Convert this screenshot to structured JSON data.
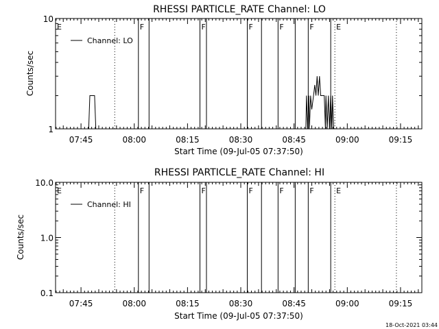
{
  "chart_data": [
    {
      "type": "line",
      "title": "RHESSI PARTICLE_RATE Channel: LO",
      "xlabel": "Start Time (09-Jul-05 07:37:50)",
      "ylabel": "Counts/sec",
      "yscale": "log",
      "ylim": [
        1,
        10
      ],
      "y_tick_labels": [
        "1",
        "10"
      ],
      "xlim": [
        "07:37:50",
        "09:21:00"
      ],
      "x_tick_labels": [
        "07:45",
        "08:00",
        "08:15",
        "08:30",
        "08:45",
        "09:00",
        "09:15"
      ],
      "legend": {
        "label": "Channel: LO",
        "placement": "top-left"
      },
      "grid": false,
      "series": [
        {
          "name": "Channel: LO",
          "color": "#000000",
          "points": [
            [
              "07:47:10",
              1
            ],
            [
              "07:47:30",
              2
            ],
            [
              "07:48:50",
              2
            ],
            [
              "07:49:10",
              1
            ],
            [
              "08:48:20",
              1
            ],
            [
              "08:48:30",
              2
            ],
            [
              "08:48:50",
              1
            ],
            [
              "08:49:10",
              2
            ],
            [
              "08:49:20",
              1
            ],
            [
              "08:49:40",
              2
            ],
            [
              "08:50:00",
              1.5
            ],
            [
              "08:50:30",
              2
            ],
            [
              "08:50:50",
              2.5
            ],
            [
              "08:51:10",
              2
            ],
            [
              "08:51:30",
              3
            ],
            [
              "08:51:50",
              2
            ],
            [
              "08:52:10",
              3
            ],
            [
              "08:52:30",
              2
            ],
            [
              "08:52:50",
              2
            ],
            [
              "08:53:30",
              2
            ],
            [
              "08:53:50",
              1
            ],
            [
              "08:54:00",
              2
            ],
            [
              "08:54:20",
              1
            ],
            [
              "08:54:40",
              2
            ],
            [
              "08:55:00",
              1
            ],
            [
              "08:55:20",
              2
            ],
            [
              "08:55:40",
              1
            ],
            [
              "08:55:50",
              2
            ],
            [
              "08:56:10",
              1
            ]
          ]
        }
      ]
    },
    {
      "type": "line",
      "title": "RHESSI PARTICLE_RATE Channel: HI",
      "xlabel": "Start Time (09-Jul-05 07:37:50)",
      "ylabel": "Counts/sec",
      "yscale": "log",
      "ylim": [
        0.1,
        10
      ],
      "y_tick_labels": [
        "0.1",
        "1.0",
        "10.0"
      ],
      "xlim": [
        "07:37:50",
        "09:21:00"
      ],
      "x_tick_labels": [
        "07:45",
        "08:00",
        "08:15",
        "08:30",
        "08:45",
        "09:00",
        "09:15"
      ],
      "legend": {
        "label": "Channel: HI",
        "placement": "top-left"
      },
      "grid": false,
      "series": [
        {
          "name": "Channel: HI",
          "color": "#000000",
          "points": []
        }
      ]
    }
  ],
  "flags": [
    {
      "time": "07:37:50",
      "label": "E",
      "style": "solid"
    },
    {
      "time": "07:54:30",
      "label": "",
      "style": "dotted"
    },
    {
      "time": "08:01:10",
      "label": "F",
      "style": "solid"
    },
    {
      "time": "08:04:10",
      "label": "",
      "style": "solid"
    },
    {
      "time": "08:18:30",
      "label": "F",
      "style": "solid"
    },
    {
      "time": "08:20:20",
      "label": "",
      "style": "solid"
    },
    {
      "time": "08:31:50",
      "label": "F",
      "style": "solid"
    },
    {
      "time": "08:35:50",
      "label": "",
      "style": "solid"
    },
    {
      "time": "08:40:30",
      "label": "F",
      "style": "solid"
    },
    {
      "time": "08:45:20",
      "label": "",
      "style": "solid"
    },
    {
      "time": "08:49:00",
      "label": "F",
      "style": "solid"
    },
    {
      "time": "08:55:20",
      "label": "",
      "style": "solid"
    },
    {
      "time": "08:56:30",
      "label": "E",
      "style": "dotted"
    },
    {
      "time": "09:13:50",
      "label": "",
      "style": "dotted"
    }
  ],
  "timestamp": "18-Oct-2021 03:44"
}
